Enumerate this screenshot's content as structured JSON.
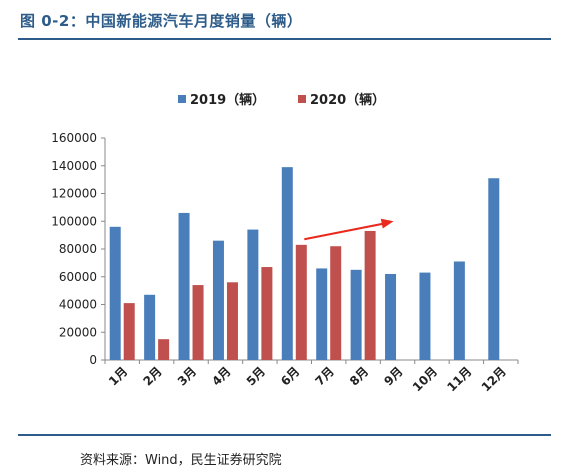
{
  "header": {
    "title": "图 0-2：中国新能源汽车月度销量（辆）"
  },
  "footer": {
    "source": "资料来源：Wind，民生证券研究院"
  },
  "colors": {
    "s2019": "#4a7ebb",
    "s2020": "#c0504d",
    "axis": "#888888",
    "arrow": "#e8291c"
  },
  "chart_data": {
    "type": "bar",
    "title": "",
    "xlabel": "",
    "ylabel": "",
    "categories": [
      "1月",
      "2月",
      "3月",
      "4月",
      "5月",
      "6月",
      "7月",
      "8月",
      "9月",
      "10月",
      "11月",
      "12月"
    ],
    "series": [
      {
        "name": "2019（辆）",
        "values": [
          96000,
          47000,
          106000,
          86000,
          94000,
          139000,
          66000,
          65000,
          62000,
          63000,
          71000,
          131000
        ]
      },
      {
        "name": "2020（辆）",
        "values": [
          41000,
          15000,
          54000,
          56000,
          67000,
          83000,
          82000,
          93000,
          null,
          null,
          null,
          null
        ]
      }
    ],
    "ylim": [
      0,
      160000
    ],
    "yticks": [
      0,
      20000,
      40000,
      60000,
      80000,
      100000,
      120000,
      140000,
      160000
    ],
    "grid": false,
    "legend": "top-center",
    "annotations": [
      {
        "type": "arrow",
        "from_category": "6月",
        "to_category": "9月",
        "from_value": 87000,
        "to_value": 100000
      }
    ]
  }
}
